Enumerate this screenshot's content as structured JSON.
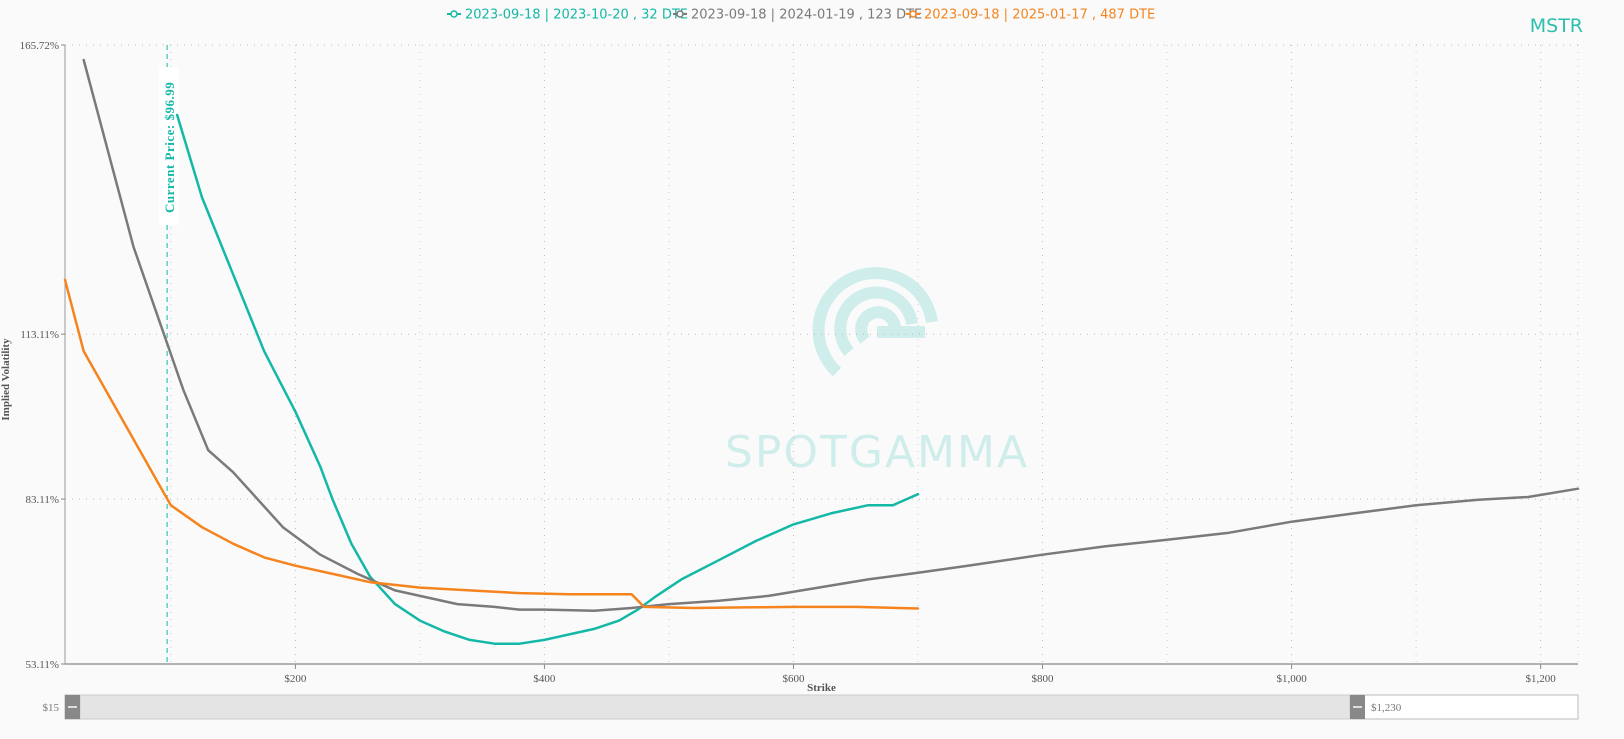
{
  "ticker": "MSTR",
  "watermark": "SPOTGAMMA",
  "colors": {
    "teal": "#14b8a6",
    "gray": "#7a7a7a",
    "orange": "#f5841f",
    "ticker": "#2bbfae"
  },
  "chart_data": {
    "type": "line",
    "xlabel": "Strike",
    "ylabel": "Implied Volatility",
    "xlim": [
      15,
      1230
    ],
    "ylim": [
      53.11,
      165.72
    ],
    "x_ticks": [
      200,
      400,
      600,
      800,
      1000,
      1200
    ],
    "x_tick_labels": [
      "$200",
      "$400",
      "$600",
      "$800",
      "$1,000",
      "$1,200"
    ],
    "y_ticks": [
      53.11,
      83.11,
      113.11,
      165.72
    ],
    "y_tick_labels": [
      "53.11%",
      "83.11%",
      "113.11%",
      "165.72%"
    ],
    "grid": true,
    "legend": "top-center",
    "current_price": {
      "value": 96.99,
      "label": "Current Price: $96.99"
    },
    "range_slider": {
      "min_label": "$15",
      "max_label": "$1,230"
    },
    "series": [
      {
        "name": "2023-09-18 | 2023-10-20 , 32 DTE",
        "color": "#14b8a6",
        "points": [
          [
            105,
            153
          ],
          [
            125,
            138
          ],
          [
            150,
            124
          ],
          [
            175,
            110
          ],
          [
            200,
            99
          ],
          [
            220,
            89
          ],
          [
            230,
            83
          ],
          [
            245,
            75
          ],
          [
            260,
            69
          ],
          [
            280,
            64
          ],
          [
            300,
            61
          ],
          [
            320,
            59
          ],
          [
            340,
            57.5
          ],
          [
            360,
            56.8
          ],
          [
            380,
            56.8
          ],
          [
            400,
            57.5
          ],
          [
            420,
            58.5
          ],
          [
            440,
            59.5
          ],
          [
            460,
            61
          ],
          [
            475,
            63
          ],
          [
            490,
            65.5
          ],
          [
            510,
            68.5
          ],
          [
            540,
            72
          ],
          [
            570,
            75.5
          ],
          [
            600,
            78.5
          ],
          [
            630,
            80.5
          ],
          [
            660,
            82
          ],
          [
            680,
            82
          ],
          [
            685,
            82.5
          ],
          [
            700,
            84
          ]
        ]
      },
      {
        "name": "2023-09-18 | 2024-01-19 , 123 DTE",
        "color": "#7a7a7a",
        "points": [
          [
            30,
            163
          ],
          [
            50,
            146
          ],
          [
            70,
            129
          ],
          [
            90,
            116
          ],
          [
            110,
            103
          ],
          [
            130,
            92
          ],
          [
            150,
            88
          ],
          [
            170,
            83
          ],
          [
            190,
            78
          ],
          [
            220,
            73
          ],
          [
            250,
            69.5
          ],
          [
            280,
            66.5
          ],
          [
            300,
            65.5
          ],
          [
            330,
            64
          ],
          [
            360,
            63.5
          ],
          [
            380,
            63
          ],
          [
            400,
            63
          ],
          [
            440,
            62.8
          ],
          [
            470,
            63.3
          ],
          [
            500,
            64
          ],
          [
            540,
            64.6
          ],
          [
            580,
            65.5
          ],
          [
            620,
            67
          ],
          [
            660,
            68.5
          ],
          [
            700,
            69.7
          ],
          [
            740,
            71
          ],
          [
            800,
            73
          ],
          [
            850,
            74.5
          ],
          [
            900,
            75.7
          ],
          [
            950,
            77
          ],
          [
            1000,
            79
          ],
          [
            1050,
            80.5
          ],
          [
            1100,
            82
          ],
          [
            1150,
            83
          ],
          [
            1190,
            83.5
          ],
          [
            1230,
            85
          ]
        ]
      },
      {
        "name": "2023-09-18 | 2025-01-17 , 487 DTE",
        "color": "#f5841f",
        "points": [
          [
            15,
            123
          ],
          [
            30,
            110
          ],
          [
            45,
            104
          ],
          [
            60,
            98
          ],
          [
            80,
            90
          ],
          [
            100,
            82
          ],
          [
            125,
            78
          ],
          [
            150,
            75
          ],
          [
            175,
            72.5
          ],
          [
            200,
            71
          ],
          [
            230,
            69.5
          ],
          [
            260,
            68
          ],
          [
            300,
            67
          ],
          [
            340,
            66.5
          ],
          [
            380,
            66
          ],
          [
            420,
            65.8
          ],
          [
            470,
            65.8
          ],
          [
            480,
            63.5
          ],
          [
            520,
            63.3
          ],
          [
            560,
            63.4
          ],
          [
            600,
            63.5
          ],
          [
            650,
            63.5
          ],
          [
            700,
            63.2
          ]
        ]
      }
    ]
  }
}
